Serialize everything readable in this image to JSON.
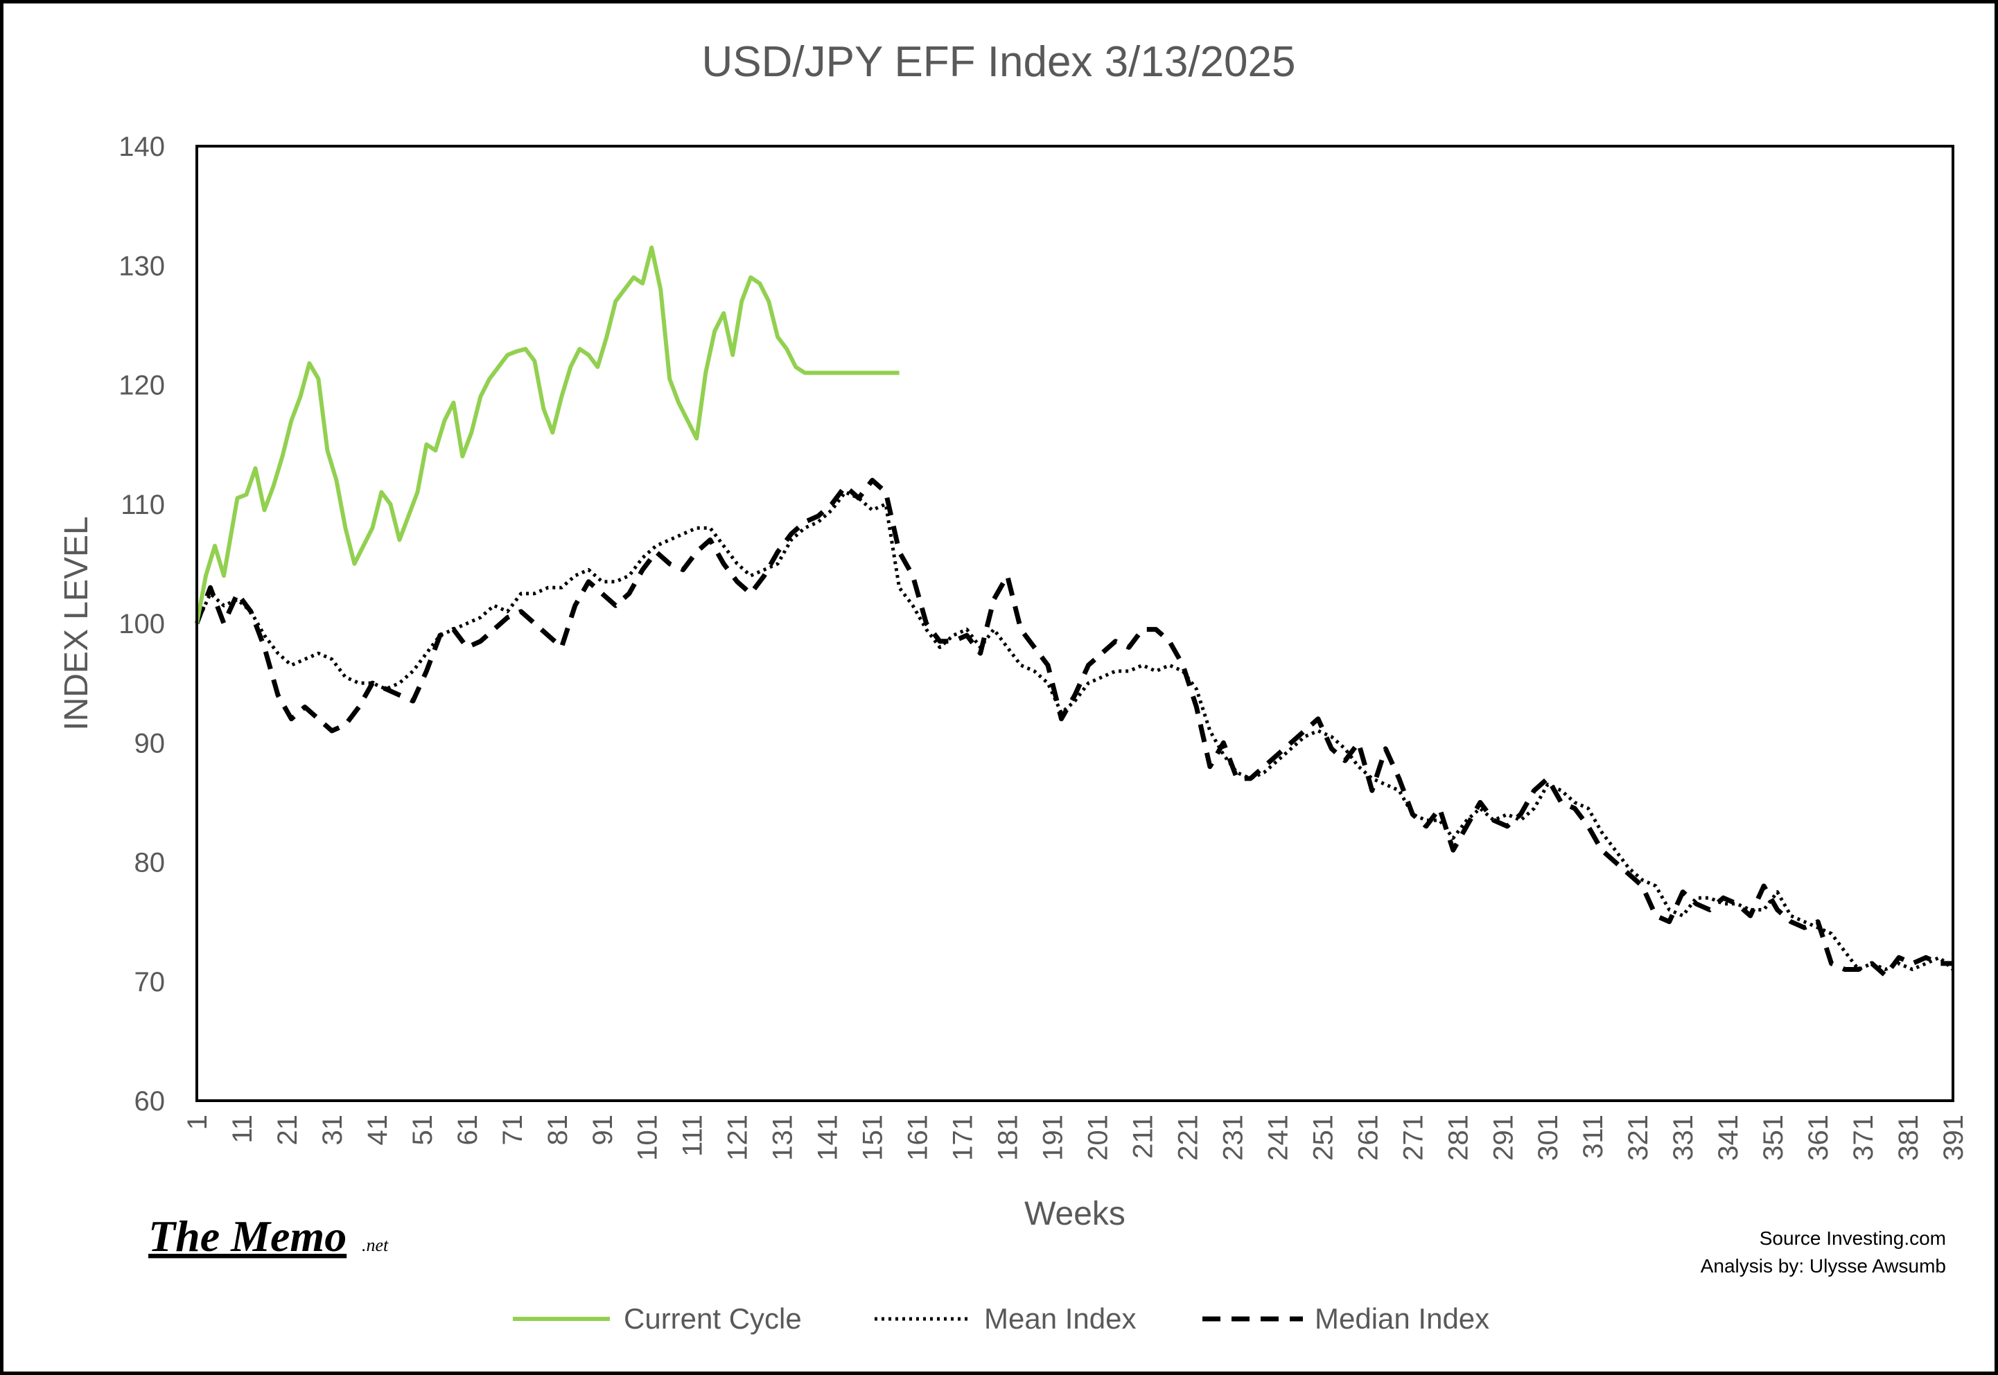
{
  "chart_data": {
    "type": "line",
    "title": "USD/JPY EFF Index 3/13/2025",
    "xlabel": "Weeks",
    "ylabel": "INDEX LEVEL",
    "xlim": [
      1,
      391
    ],
    "ylim": [
      60,
      140
    ],
    "yticks": [
      60,
      70,
      80,
      90,
      100,
      110,
      120,
      130,
      140
    ],
    "xticks": [
      1,
      11,
      21,
      31,
      41,
      51,
      61,
      71,
      81,
      91,
      101,
      111,
      121,
      131,
      141,
      151,
      161,
      171,
      181,
      191,
      201,
      211,
      221,
      231,
      241,
      251,
      261,
      271,
      281,
      291,
      301,
      311,
      321,
      331,
      341,
      351,
      361,
      371,
      381,
      391
    ],
    "grid": false,
    "legend_position": "bottom",
    "series": [
      {
        "name": "Current Cycle",
        "color": "#92D050",
        "style": "solid",
        "x": [
          1,
          3,
          5,
          7,
          10,
          12,
          14,
          16,
          18,
          20,
          22,
          24,
          26,
          28,
          30,
          32,
          34,
          36,
          38,
          40,
          42,
          44,
          46,
          48,
          50,
          52,
          54,
          56,
          58,
          60,
          62,
          64,
          66,
          68,
          70,
          72,
          74,
          76,
          78,
          80,
          82,
          84,
          86,
          88,
          90,
          92,
          94,
          96,
          98,
          100,
          102,
          104,
          106,
          108,
          110,
          112,
          114,
          116,
          118,
          120,
          122,
          124,
          126,
          128,
          130,
          132,
          134,
          136,
          138,
          140,
          142,
          144,
          146,
          148,
          150,
          152,
          154,
          156,
          157
        ],
        "values": [
          100.0,
          104.0,
          106.5,
          104.0,
          110.5,
          110.8,
          113.0,
          109.5,
          111.5,
          114.0,
          117.0,
          119.0,
          121.8,
          120.5,
          114.5,
          112.0,
          108.0,
          105.0,
          106.5,
          108.0,
          111.0,
          110.0,
          107.0,
          109.0,
          111.0,
          115.0,
          114.5,
          117.0,
          118.5,
          114.0,
          116.0,
          119.0,
          120.5,
          121.5,
          122.5,
          122.8,
          123.0,
          122.0,
          118.0,
          116.0,
          119.0,
          121.5,
          123.0,
          122.5,
          121.5,
          124.0,
          127.0,
          128.0,
          129.0,
          128.5,
          131.5,
          128.0,
          120.5,
          118.5,
          117.0,
          115.5,
          121.0,
          124.5,
          126.0,
          122.5,
          127.0,
          129.0,
          128.5,
          127.0,
          124.0,
          123.0,
          121.5,
          121.0,
          121.0,
          121.0,
          121.0,
          121.0,
          121.0,
          121.0,
          121.0,
          121.0,
          121.0,
          121.0,
          121.0
        ]
      },
      {
        "name": "Mean Index",
        "color": "#000000",
        "style": "dotted",
        "x": [
          1,
          4,
          7,
          10,
          13,
          16,
          19,
          22,
          25,
          28,
          31,
          34,
          37,
          40,
          43,
          46,
          49,
          52,
          55,
          58,
          61,
          64,
          67,
          70,
          73,
          76,
          79,
          82,
          85,
          88,
          91,
          94,
          97,
          100,
          103,
          106,
          109,
          112,
          115,
          118,
          121,
          124,
          127,
          130,
          133,
          136,
          139,
          142,
          145,
          148,
          151,
          154,
          157,
          160,
          163,
          166,
          169,
          172,
          175,
          178,
          181,
          184,
          187,
          190,
          193,
          196,
          199,
          202,
          205,
          208,
          211,
          214,
          217,
          220,
          223,
          226,
          229,
          232,
          235,
          238,
          241,
          244,
          247,
          250,
          253,
          256,
          259,
          262,
          265,
          268,
          271,
          274,
          277,
          280,
          283,
          286,
          289,
          292,
          295,
          298,
          301,
          304,
          307,
          310,
          313,
          316,
          319,
          322,
          325,
          328,
          331,
          334,
          337,
          340,
          343,
          346,
          349,
          352,
          355,
          358,
          361,
          364,
          367,
          370,
          373,
          376,
          379,
          382,
          385,
          388,
          391
        ],
        "values": [
          100.0,
          102.5,
          101.5,
          102.0,
          101.0,
          99.0,
          97.5,
          96.5,
          97.0,
          97.5,
          97.0,
          95.5,
          95.0,
          95.0,
          94.5,
          95.0,
          96.0,
          97.5,
          99.0,
          99.5,
          100.0,
          100.5,
          101.5,
          101.0,
          102.5,
          102.5,
          103.0,
          103.0,
          104.0,
          104.5,
          103.5,
          103.5,
          104.0,
          105.5,
          106.5,
          107.0,
          107.5,
          108.0,
          108.0,
          106.5,
          105.0,
          104.0,
          104.5,
          105.0,
          107.0,
          108.0,
          108.5,
          109.5,
          111.0,
          110.5,
          109.5,
          110.0,
          103.0,
          101.5,
          99.5,
          98.0,
          99.0,
          99.5,
          98.0,
          99.5,
          98.0,
          96.5,
          96.0,
          95.0,
          92.5,
          93.5,
          95.0,
          95.5,
          96.0,
          96.0,
          96.5,
          96.0,
          96.5,
          96.0,
          94.5,
          91.0,
          89.0,
          87.5,
          87.0,
          87.5,
          88.5,
          89.5,
          90.5,
          91.0,
          90.5,
          89.5,
          88.0,
          87.0,
          86.5,
          86.0,
          84.0,
          83.5,
          83.5,
          82.0,
          83.5,
          84.5,
          83.5,
          84.0,
          83.5,
          84.5,
          86.5,
          86.0,
          85.0,
          84.5,
          82.5,
          81.0,
          79.5,
          78.5,
          78.0,
          76.0,
          75.5,
          77.0,
          77.0,
          76.5,
          76.5,
          76.0,
          76.0,
          77.5,
          75.5,
          75.0,
          74.5,
          74.0,
          72.5,
          71.0,
          71.5,
          71.0,
          71.5,
          71.0,
          71.5,
          72.0,
          71.0
        ]
      },
      {
        "name": "Median Index",
        "color": "#000000",
        "style": "dashed",
        "x": [
          1,
          4,
          7,
          10,
          13,
          16,
          19,
          22,
          25,
          28,
          31,
          34,
          37,
          40,
          43,
          46,
          49,
          52,
          55,
          58,
          61,
          64,
          67,
          70,
          73,
          76,
          79,
          82,
          85,
          88,
          91,
          94,
          97,
          100,
          103,
          106,
          109,
          112,
          115,
          118,
          121,
          124,
          127,
          130,
          133,
          136,
          139,
          142,
          145,
          148,
          151,
          154,
          157,
          160,
          163,
          166,
          169,
          172,
          175,
          178,
          181,
          184,
          187,
          190,
          193,
          196,
          199,
          202,
          205,
          208,
          211,
          214,
          217,
          220,
          223,
          226,
          229,
          232,
          235,
          238,
          241,
          244,
          247,
          250,
          253,
          256,
          259,
          262,
          265,
          268,
          271,
          274,
          277,
          280,
          283,
          286,
          289,
          292,
          295,
          298,
          301,
          304,
          307,
          310,
          313,
          316,
          319,
          322,
          325,
          328,
          331,
          334,
          337,
          340,
          343,
          346,
          349,
          352,
          355,
          358,
          361,
          364,
          367,
          370,
          373,
          376,
          379,
          382,
          385,
          388,
          391
        ],
        "values": [
          100.0,
          103.0,
          100.0,
          102.5,
          101.0,
          98.0,
          94.0,
          92.0,
          93.0,
          92.0,
          91.0,
          91.5,
          93.0,
          95.0,
          94.5,
          94.0,
          93.5,
          96.0,
          99.0,
          99.5,
          98.0,
          98.5,
          99.5,
          100.5,
          101.0,
          100.0,
          99.0,
          98.0,
          101.5,
          103.5,
          102.5,
          101.5,
          102.5,
          104.5,
          106.0,
          105.0,
          104.5,
          106.0,
          107.0,
          105.0,
          103.5,
          102.5,
          104.0,
          106.0,
          107.5,
          108.5,
          109.0,
          110.0,
          111.5,
          110.5,
          112.0,
          111.0,
          106.0,
          104.0,
          100.0,
          98.5,
          98.5,
          99.0,
          97.5,
          102.0,
          104.0,
          99.5,
          98.0,
          96.5,
          92.0,
          94.0,
          96.5,
          97.5,
          98.5,
          98.0,
          99.5,
          99.5,
          98.5,
          96.5,
          93.0,
          88.0,
          90.0,
          87.0,
          87.0,
          88.0,
          89.0,
          90.0,
          91.0,
          92.0,
          89.5,
          88.5,
          90.0,
          86.0,
          89.5,
          87.0,
          84.0,
          83.0,
          84.5,
          81.0,
          83.0,
          85.0,
          83.5,
          83.0,
          84.0,
          86.0,
          87.0,
          85.0,
          84.5,
          83.0,
          81.0,
          80.0,
          79.0,
          78.0,
          75.5,
          75.0,
          77.5,
          76.5,
          76.0,
          77.0,
          76.5,
          75.5,
          78.0,
          76.0,
          75.0,
          74.5,
          75.0,
          71.5,
          71.0,
          71.0,
          71.5,
          70.5,
          72.0,
          71.5,
          72.0,
          71.5,
          71.5
        ]
      }
    ]
  },
  "annotations": {
    "source": "Source Investing.com",
    "analysis": "Analysis by: Ulysse Awsumb",
    "logo_text": "The Memo",
    "logo_suffix": ".net"
  }
}
